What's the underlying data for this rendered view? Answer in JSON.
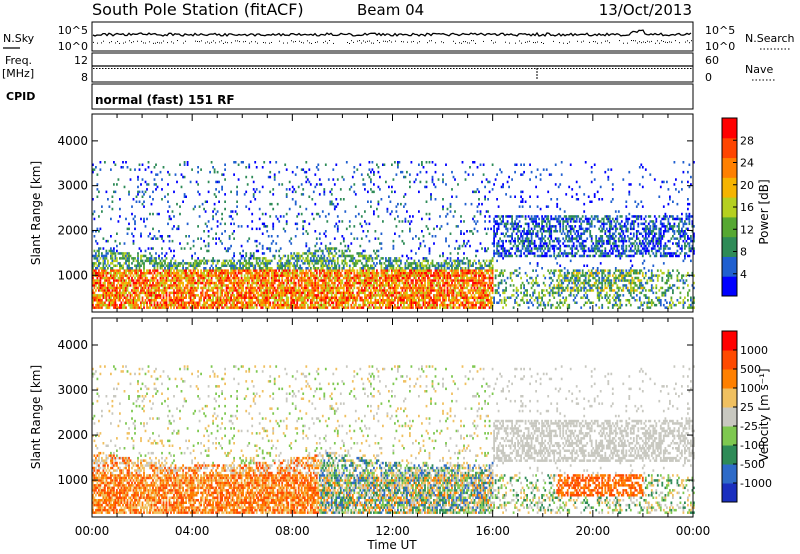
{
  "header": {
    "title": "South Pole Station (fitACF)",
    "beam": "Beam 04",
    "date": "13/Oct/2013"
  },
  "noise_panel": {
    "left_label": "N.Sky",
    "right_label": "N.Search",
    "left_ticks": [
      "10^5",
      "10^0"
    ],
    "right_ticks": [
      "10^5",
      "10^0"
    ]
  },
  "freq_panel": {
    "left_label_1": "Freq.",
    "left_label_2": "[MHz]",
    "right_label": "Nave",
    "left_ticks": [
      "12",
      "8"
    ],
    "right_ticks": [
      "60",
      "0"
    ]
  },
  "cpid": {
    "label": "CPID",
    "value": "normal (fast) 151 RF"
  },
  "colors": {
    "power": [
      "#0000ff",
      "#1f5fcf",
      "#2e8b57",
      "#56a832",
      "#b5d020",
      "#f5b400",
      "#ff8000",
      "#ff4500",
      "#ff0000"
    ],
    "velocity": [
      "#1a2fbf",
      "#2e6bc8",
      "#2e8b57",
      "#7ec850",
      "#c8c8c0",
      "#f0c060",
      "#ff8000",
      "#ff4a00",
      "#ff0000"
    ]
  },
  "chart_data": [
    {
      "type": "heatmap",
      "title": "",
      "xlabel": "Time UT",
      "ylabel": "Slant Range [km]",
      "xlim": [
        0,
        24
      ],
      "ylim": [
        180,
        4600
      ],
      "x_tick_labels": [
        "00:00",
        "04:00",
        "08:00",
        "12:00",
        "16:00",
        "20:00",
        "00:00"
      ],
      "y_ticks": [
        1000,
        2000,
        3000,
        4000
      ],
      "y_tick_labels": [
        "1000",
        "2000",
        "3000",
        "4000"
      ],
      "colorbar": {
        "label": "Power [dB]",
        "range": [
          0,
          32
        ],
        "tick_labels": [
          "4",
          "8",
          "12",
          "16",
          "20",
          "24",
          "28"
        ]
      }
    },
    {
      "type": "heatmap",
      "title": "",
      "xlabel": "Time UT",
      "ylabel": "Slant Range [km]",
      "xlim": [
        0,
        24
      ],
      "ylim": [
        180,
        4600
      ],
      "x_tick_labels": [
        "00:00",
        "04:00",
        "08:00",
        "12:00",
        "16:00",
        "20:00",
        "00:00"
      ],
      "y_ticks": [
        1000,
        2000,
        3000,
        4000
      ],
      "y_tick_labels": [
        "1000",
        "2000",
        "3000",
        "4000"
      ],
      "colorbar": {
        "label": "Velocity [m s⁻¹]",
        "tick_labels": [
          "1000",
          "500",
          "100",
          "25",
          "-25",
          "-100",
          "-500",
          "-1000"
        ]
      }
    }
  ]
}
